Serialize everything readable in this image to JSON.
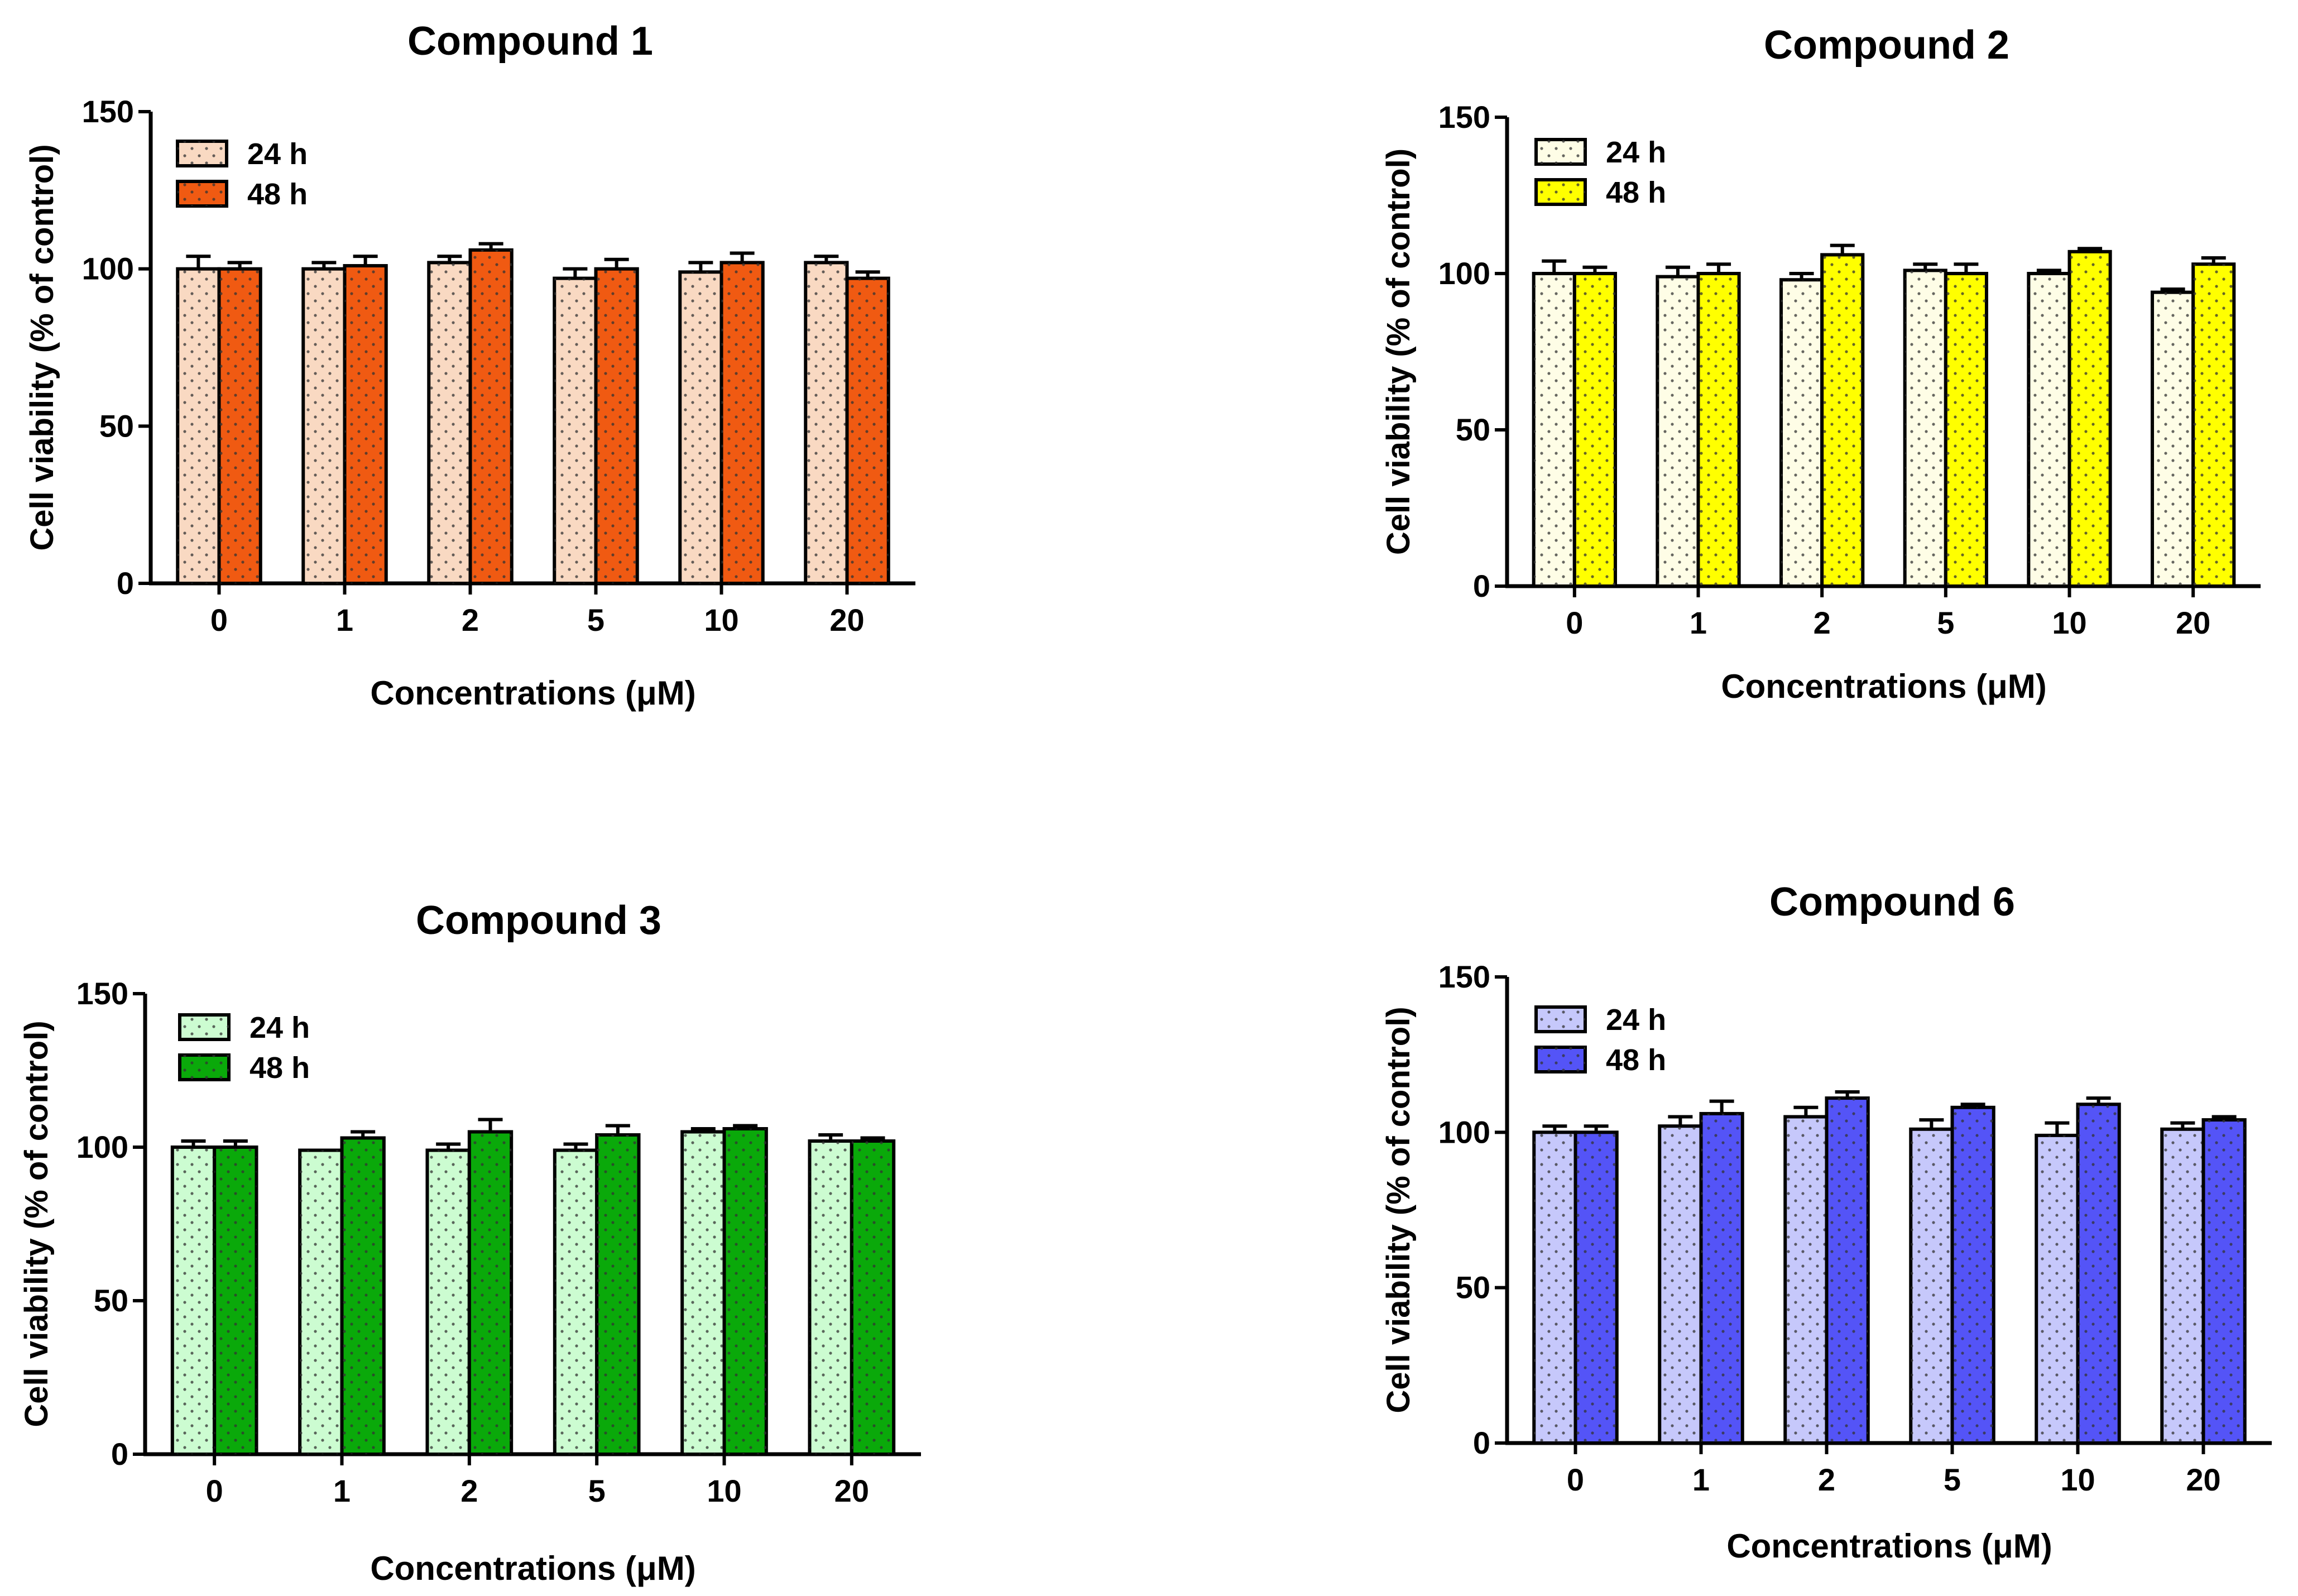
{
  "chart_data": [
    {
      "type": "bar",
      "title": "Compound 1",
      "xlabel": "Concentrations (μM)",
      "ylabel": "Cell viability (% of control)",
      "ylim": [
        0,
        150
      ],
      "yticks": [
        0,
        50,
        100,
        150
      ],
      "categories": [
        "0",
        "1",
        "2",
        "5",
        "10",
        "20"
      ],
      "series": [
        {
          "name": "24 h",
          "color": "#f9d9c2",
          "values": [
            100,
            100,
            102,
            97,
            99,
            102
          ],
          "errors": [
            4,
            2,
            2,
            3,
            3,
            2
          ]
        },
        {
          "name": "48 h",
          "color": "#f05a12",
          "values": [
            100,
            101,
            106,
            100,
            102,
            97
          ],
          "errors": [
            2,
            3,
            2,
            3,
            3,
            2
          ]
        }
      ]
    },
    {
      "type": "bar",
      "title": "Compound 2",
      "xlabel": "Concentrations (μM)",
      "ylabel": "Cell viability (% of control)",
      "ylim": [
        0,
        150
      ],
      "yticks": [
        0,
        50,
        100,
        150
      ],
      "categories": [
        "0",
        "1",
        "2",
        "5",
        "10",
        "20"
      ],
      "series": [
        {
          "name": "24 h",
          "color": "#fefde6",
          "values": [
            100,
            99,
            98,
            101,
            100,
            94
          ],
          "errors": [
            4,
            3,
            2,
            2,
            1,
            1
          ]
        },
        {
          "name": "48 h",
          "color": "#ffff00",
          "values": [
            100,
            100,
            106,
            100,
            107,
            103
          ],
          "errors": [
            2,
            3,
            3,
            3,
            1,
            2
          ]
        }
      ]
    },
    {
      "type": "bar",
      "title": "Compound 3",
      "xlabel": "Concentrations  (μM)",
      "ylabel": "Cell viability (% of control)",
      "ylim": [
        0,
        150
      ],
      "yticks": [
        0,
        50,
        100,
        150
      ],
      "categories": [
        "0",
        "1",
        "2",
        "5",
        "10",
        "20"
      ],
      "series": [
        {
          "name": "24 h",
          "color": "#ccfcd1",
          "values": [
            100,
            99,
            99,
            99,
            105,
            102
          ],
          "errors": [
            2,
            0,
            2,
            2,
            1,
            2
          ]
        },
        {
          "name": "48 h",
          "color": "#0aa90a",
          "values": [
            100,
            103,
            105,
            104,
            106,
            102
          ],
          "errors": [
            2,
            2,
            4,
            3,
            1,
            1
          ]
        }
      ]
    },
    {
      "type": "bar",
      "title": "Compound 6",
      "xlabel": "Concentrations (μM)",
      "ylabel": "Cell viability (% of control)",
      "ylim": [
        0,
        150
      ],
      "yticks": [
        0,
        50,
        100,
        150
      ],
      "categories": [
        "0",
        "1",
        "2",
        "5",
        "10",
        "20"
      ],
      "series": [
        {
          "name": "24 h",
          "color": "#c6c8fb",
          "values": [
            100,
            102,
            105,
            101,
            99,
            101
          ],
          "errors": [
            2,
            3,
            3,
            3,
            4,
            2
          ]
        },
        {
          "name": "48 h",
          "color": "#5454f7",
          "values": [
            100,
            106,
            111,
            108,
            109,
            104
          ],
          "errors": [
            2,
            4,
            2,
            1,
            2,
            1
          ]
        }
      ]
    }
  ]
}
